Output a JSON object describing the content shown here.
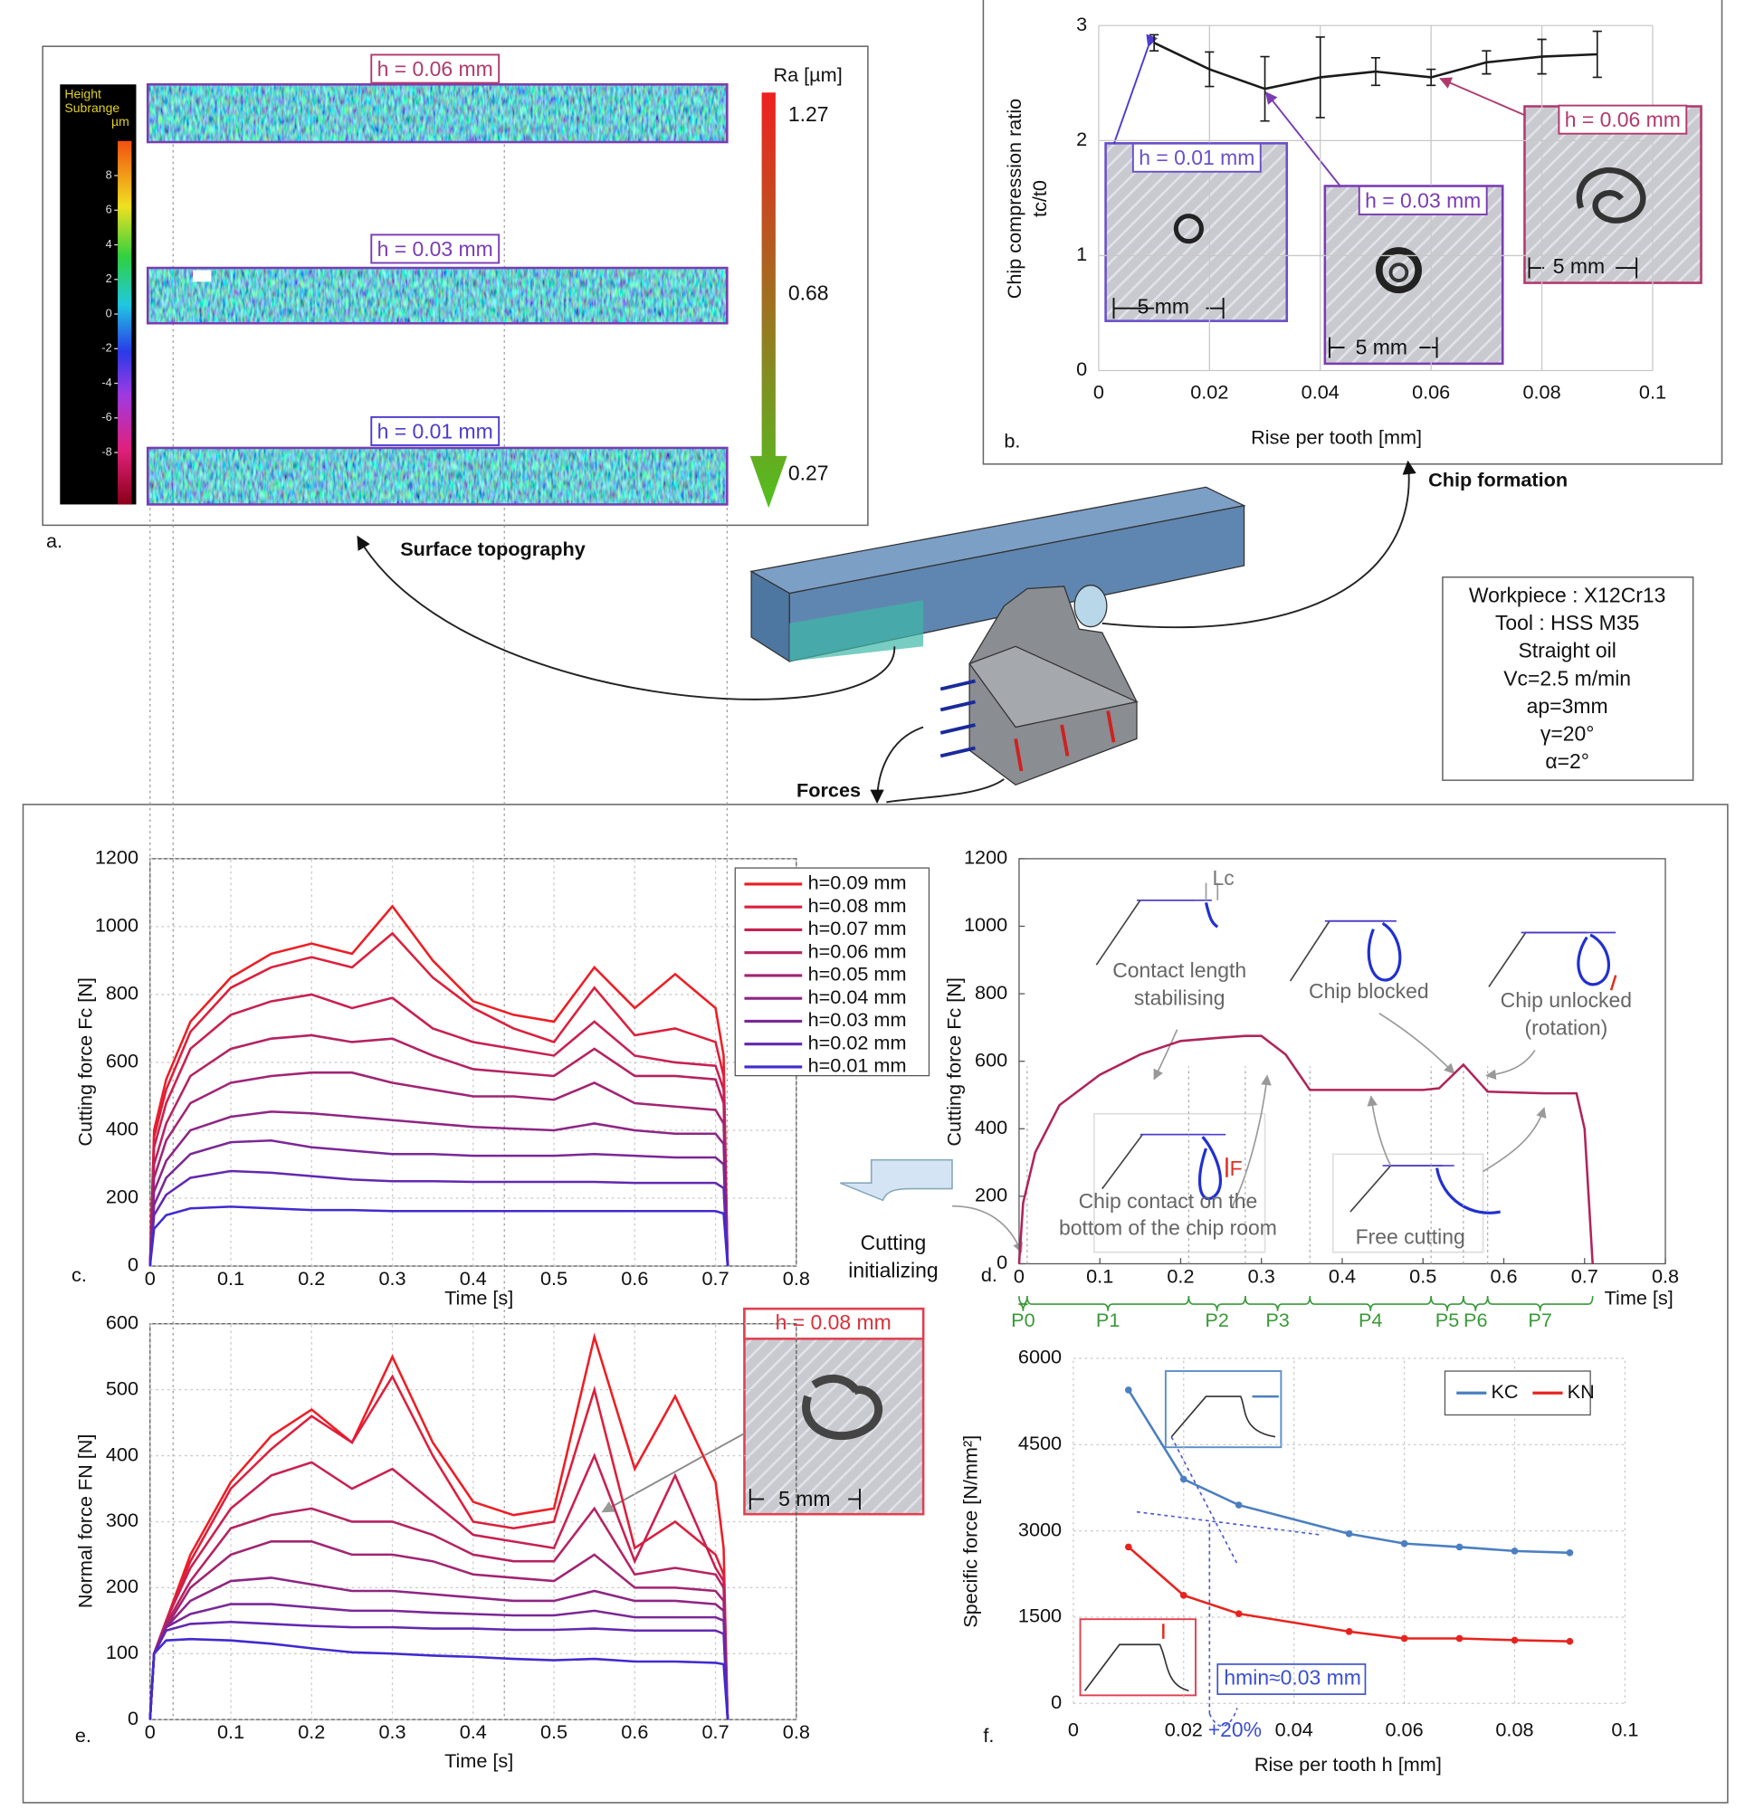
{
  "figure": {
    "panel_a": "a.",
    "topo_labels": [
      "h = 0.06 mm",
      "h = 0.03 mm",
      "h = 0.01 mm"
    ],
    "height_title": [
      "Height",
      "Subrange",
      "µm"
    ],
    "height_ticks": [
      8,
      6,
      4,
      2,
      0,
      -2,
      -4,
      -6,
      -8
    ],
    "ra_title": "Ra [µm]",
    "ra_ticks": [
      1.27,
      0.68,
      0.27
    ],
    "captions": [
      "Surface topography",
      "Chip formation",
      "Forces"
    ],
    "workpiece": [
      "Workpiece : X12Cr13",
      "Tool : HSS M35",
      "Straight oil",
      "Vc=2.5 m/min",
      "ap=3mm",
      "γ=20°",
      "α=2°"
    ]
  },
  "chart_data": [
    {
      "type": "line",
      "panel": "b.",
      "x": [
        0.01,
        0.02,
        0.03,
        0.04,
        0.05,
        0.06,
        0.07,
        0.08,
        0.09
      ],
      "series": [
        {
          "color": "#1a1a1a",
          "values": [
            2.85,
            2.62,
            2.45,
            2.55,
            2.6,
            2.55,
            2.68,
            2.73,
            2.75
          ],
          "errors": [
            0.07,
            0.15,
            0.28,
            0.35,
            0.12,
            0.07,
            0.1,
            0.15,
            0.2
          ]
        }
      ],
      "xlim": [
        0,
        0.1
      ],
      "xticks": [
        0,
        0.02,
        0.04,
        0.06,
        0.08,
        0.1
      ],
      "ylim": [
        0,
        3
      ],
      "yticks": [
        0,
        1,
        2,
        3
      ],
      "grid": true,
      "xlabel": "Rise per tooth [mm]",
      "ylabel": [
        "Chip compression ratio",
        "tc/t0"
      ],
      "annotations": [
        "h = 0.01 mm",
        "h = 0.03 mm",
        "h = 0.06 mm",
        "5 mm",
        "5 mm",
        "5 mm"
      ]
    },
    {
      "type": "line",
      "panel": "c.",
      "x": [
        0,
        0.005,
        0.02,
        0.05,
        0.1,
        0.15,
        0.2,
        0.25,
        0.3,
        0.35,
        0.4,
        0.45,
        0.5,
        0.55,
        0.6,
        0.65,
        0.7,
        0.71,
        0.715
      ],
      "series": [
        {
          "name": "h=0.09 mm",
          "color": "#ee1d23",
          "values": [
            0,
            400,
            550,
            720,
            850,
            920,
            950,
            920,
            1060,
            900,
            780,
            740,
            720,
            880,
            760,
            860,
            760,
            620,
            0
          ]
        },
        {
          "name": "h=0.08 mm",
          "color": "#dc1f3c",
          "values": [
            0,
            380,
            520,
            690,
            820,
            880,
            910,
            880,
            980,
            850,
            760,
            700,
            660,
            820,
            680,
            700,
            660,
            560,
            0
          ]
        },
        {
          "name": "h=0.07 mm",
          "color": "#c92050",
          "values": [
            0,
            350,
            480,
            640,
            740,
            780,
            800,
            760,
            790,
            700,
            660,
            640,
            620,
            720,
            620,
            600,
            590,
            520,
            0
          ]
        },
        {
          "name": "h=0.06 mm",
          "color": "#b52262",
          "values": [
            0,
            300,
            420,
            560,
            640,
            670,
            680,
            660,
            670,
            620,
            580,
            570,
            560,
            640,
            560,
            560,
            550,
            480,
            0
          ]
        },
        {
          "name": "h=0.05 mm",
          "color": "#a12473",
          "values": [
            0,
            260,
            370,
            480,
            540,
            560,
            570,
            570,
            540,
            520,
            500,
            500,
            490,
            540,
            480,
            470,
            460,
            420,
            0
          ]
        },
        {
          "name": "h=0.04 mm",
          "color": "#8e2584",
          "values": [
            0,
            220,
            310,
            400,
            440,
            455,
            450,
            440,
            430,
            420,
            410,
            405,
            400,
            420,
            400,
            390,
            390,
            360,
            0
          ]
        },
        {
          "name": "h=0.03 mm",
          "color": "#7a2796",
          "values": [
            0,
            180,
            260,
            330,
            365,
            370,
            350,
            340,
            330,
            330,
            325,
            325,
            325,
            330,
            325,
            320,
            320,
            300,
            0
          ]
        },
        {
          "name": "h=0.02 mm",
          "color": "#6228b0",
          "values": [
            0,
            150,
            210,
            260,
            280,
            275,
            265,
            255,
            250,
            250,
            248,
            248,
            248,
            248,
            245,
            245,
            245,
            230,
            0
          ]
        },
        {
          "name": "h=0.01 mm",
          "color": "#3f2bd0",
          "values": [
            0,
            110,
            150,
            170,
            175,
            170,
            165,
            165,
            162,
            162,
            162,
            162,
            162,
            162,
            162,
            162,
            162,
            155,
            0
          ]
        }
      ],
      "xlim": [
        0,
        0.8
      ],
      "xticks": [
        0,
        0.1,
        0.2,
        0.3,
        0.4,
        0.5,
        0.6,
        0.7,
        0.8
      ],
      "ylim": [
        0,
        1200
      ],
      "yticks": [
        0,
        200,
        400,
        600,
        800,
        1000,
        1200
      ],
      "grid": true,
      "legend": "upper right",
      "xlabel": "Time [s]",
      "ylabel": "Cutting force Fc [N]"
    },
    {
      "type": "line",
      "panel": "d.",
      "x": [
        0,
        0.005,
        0.02,
        0.05,
        0.1,
        0.15,
        0.2,
        0.25,
        0.28,
        0.3,
        0.33,
        0.36,
        0.4,
        0.45,
        0.5,
        0.52,
        0.55,
        0.58,
        0.65,
        0.69,
        0.7,
        0.71
      ],
      "series": [
        {
          "color": "#b0245a",
          "values": [
            0,
            180,
            330,
            470,
            560,
            620,
            660,
            670,
            675,
            675,
            620,
            515,
            515,
            515,
            515,
            520,
            590,
            510,
            505,
            505,
            400,
            0
          ]
        }
      ],
      "xlim": [
        0,
        0.8
      ],
      "xticks": [
        0,
        0.1,
        0.2,
        0.3,
        0.4,
        0.5,
        0.6,
        0.7,
        0.8
      ],
      "ylim": [
        0,
        1200
      ],
      "yticks": [
        0,
        200,
        400,
        600,
        800,
        1000,
        1200
      ],
      "grid": false,
      "xlabel": "Time [s]",
      "ylabel": "Cutting force Fc [N]",
      "phases": [
        "P0",
        "P1",
        "P2",
        "P3",
        "P4",
        "P5",
        "P6",
        "P7"
      ],
      "phase_bounds": [
        0,
        0.01,
        0.21,
        0.28,
        0.36,
        0.51,
        0.55,
        0.58,
        0.71
      ],
      "annotations": [
        "Lc",
        "Contact length",
        "stabilising",
        "Chip blocked",
        "Chip unlocked",
        "(rotation)",
        "Chip contact on the",
        "bottom of the chip room",
        "F",
        "Free cutting",
        "Cutting",
        "initializing"
      ]
    },
    {
      "type": "line",
      "panel": "e.",
      "x": [
        0,
        0.005,
        0.02,
        0.05,
        0.1,
        0.15,
        0.2,
        0.25,
        0.3,
        0.35,
        0.4,
        0.45,
        0.5,
        0.55,
        0.6,
        0.65,
        0.7,
        0.71,
        0.715
      ],
      "series": [
        {
          "name": "h=0.09 mm",
          "color": "#ee1d23",
          "values": [
            0,
            100,
            150,
            250,
            360,
            430,
            470,
            420,
            550,
            420,
            330,
            310,
            320,
            580,
            380,
            490,
            360,
            260,
            0
          ]
        },
        {
          "name": "h=0.08 mm",
          "color": "#dc1f3c",
          "values": [
            0,
            100,
            150,
            240,
            350,
            410,
            460,
            420,
            520,
            400,
            300,
            290,
            300,
            500,
            260,
            300,
            250,
            220,
            0
          ]
        },
        {
          "name": "h=0.07 mm",
          "color": "#c92050",
          "values": [
            0,
            100,
            150,
            230,
            320,
            370,
            390,
            350,
            380,
            330,
            280,
            270,
            260,
            400,
            240,
            370,
            230,
            210,
            0
          ]
        },
        {
          "name": "h=0.06 mm",
          "color": "#b52262",
          "values": [
            0,
            100,
            145,
            210,
            290,
            310,
            320,
            300,
            300,
            280,
            250,
            240,
            240,
            320,
            220,
            230,
            220,
            200,
            0
          ]
        },
        {
          "name": "h=0.05 mm",
          "color": "#a12473",
          "values": [
            0,
            100,
            140,
            200,
            250,
            270,
            270,
            250,
            250,
            240,
            220,
            215,
            210,
            250,
            200,
            200,
            195,
            180,
            0
          ]
        },
        {
          "name": "h=0.04 mm",
          "color": "#8e2584",
          "values": [
            0,
            100,
            140,
            180,
            210,
            215,
            205,
            195,
            195,
            190,
            185,
            180,
            180,
            195,
            180,
            180,
            175,
            165,
            0
          ]
        },
        {
          "name": "h=0.03 mm",
          "color": "#7a2796",
          "values": [
            0,
            100,
            140,
            160,
            175,
            175,
            170,
            165,
            165,
            162,
            160,
            158,
            158,
            165,
            155,
            155,
            155,
            150,
            0
          ]
        },
        {
          "name": "h=0.02 mm",
          "color": "#6228b0",
          "values": [
            0,
            100,
            135,
            145,
            148,
            145,
            142,
            140,
            140,
            138,
            138,
            136,
            136,
            138,
            135,
            135,
            135,
            130,
            0
          ]
        },
        {
          "name": "h=0.01 mm",
          "color": "#3f2bd0",
          "values": [
            0,
            100,
            120,
            122,
            120,
            115,
            108,
            102,
            100,
            97,
            95,
            92,
            90,
            92,
            88,
            88,
            86,
            84,
            0
          ]
        }
      ],
      "xlim": [
        0,
        0.8
      ],
      "xticks": [
        0,
        0.1,
        0.2,
        0.3,
        0.4,
        0.5,
        0.6,
        0.7,
        0.8
      ],
      "ylim": [
        0,
        600
      ],
      "yticks": [
        0,
        100,
        200,
        300,
        400,
        500,
        600
      ],
      "grid": true,
      "xlabel": "Time [s]",
      "ylabel": "Normal force FN [N]",
      "annotations": [
        "h = 0.08 mm",
        "5 mm"
      ]
    },
    {
      "type": "line",
      "panel": "f.",
      "x": [
        0.01,
        0.02,
        0.03,
        0.05,
        0.06,
        0.07,
        0.08,
        0.09
      ],
      "series": [
        {
          "name": "KC",
          "color": "#4a7fc1",
          "values": [
            5450,
            3900,
            3450,
            2950,
            2780,
            2720,
            2650,
            2620
          ]
        },
        {
          "name": "KN",
          "color": "#e8231e",
          "values": [
            2720,
            1880,
            1560,
            1250,
            1130,
            1130,
            1100,
            1080
          ]
        }
      ],
      "xlim": [
        0,
        0.1
      ],
      "xticks": [
        0,
        0.02,
        0.04,
        0.06,
        0.08,
        0.1
      ],
      "ylim": [
        0,
        6000
      ],
      "yticks": [
        0,
        1500,
        3000,
        4500,
        6000
      ],
      "grid": true,
      "legend": "upper right",
      "xlabel": "Rise per tooth h [mm]",
      "ylabel": "Specific force [N/mm²]",
      "annotations": [
        "hmin≈0.03 mm",
        "+20%"
      ]
    }
  ]
}
